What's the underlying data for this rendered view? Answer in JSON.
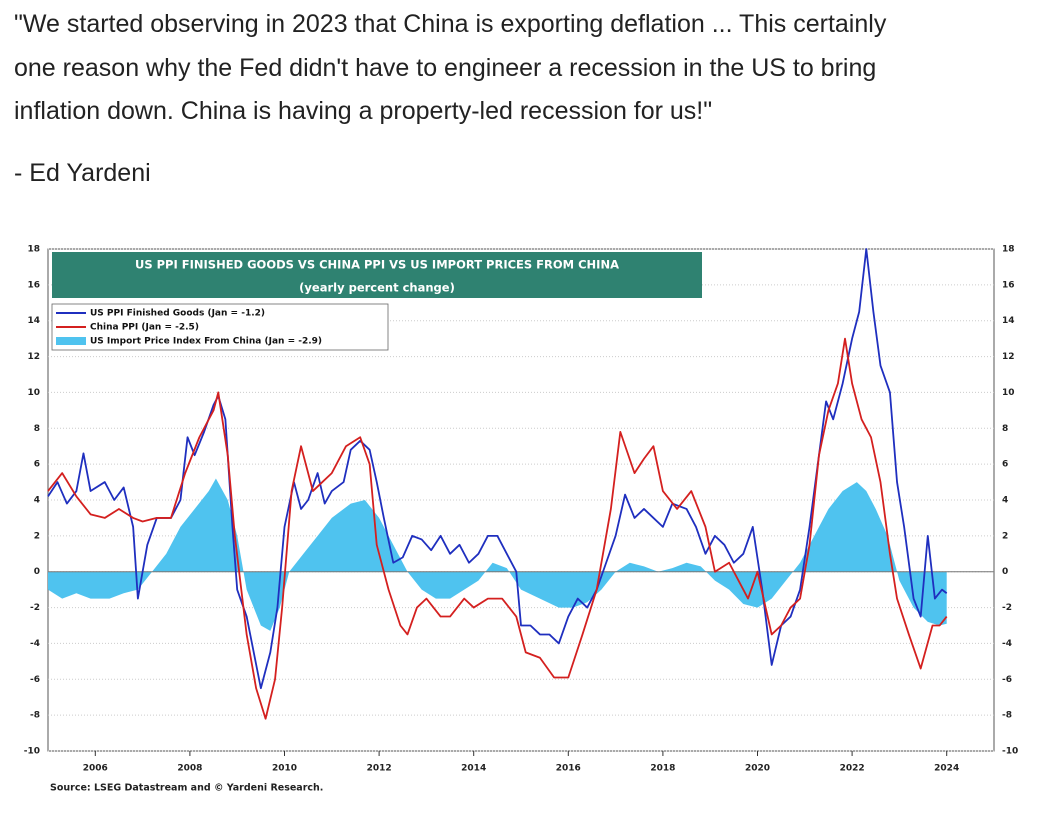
{
  "post": {
    "quote_lines": [
      "\"We started observing in 2023 that China is exporting deflation ... This certainly",
      "one reason why the Fed didn't have to engineer a recession in the US to bring",
      "inflation down. China is having a property-led recession for us!\""
    ],
    "attribution": "- Ed Yardeni"
  },
  "chart_data": {
    "type": "line",
    "title": "US PPI FINISHED GOODS VS CHINA PPI VS US IMPORT PRICES FROM CHINA",
    "subtitle": "(yearly percent change)",
    "source": "Source: LSEG Datastream and © Yardeni Research.",
    "xlim": [
      2005,
      2025
    ],
    "xticks": [
      2006,
      2008,
      2010,
      2012,
      2014,
      2016,
      2018,
      2020,
      2022,
      2024
    ],
    "ylim": [
      -10,
      18
    ],
    "yticks": [
      -10,
      -8,
      -6,
      -4,
      -2,
      0,
      2,
      4,
      6,
      8,
      10,
      12,
      14,
      16,
      18
    ],
    "grid": true,
    "series": [
      {
        "name": "US PPI Finished Goods (Jan = -1.2)",
        "color": "#1f2fbf",
        "style": "line",
        "x": [
          2005.0,
          2005.2,
          2005.4,
          2005.6,
          2005.75,
          2005.9,
          2006.2,
          2006.4,
          2006.6,
          2006.8,
          2006.9,
          2007.1,
          2007.3,
          2007.6,
          2007.8,
          2007.95,
          2008.1,
          2008.3,
          2008.5,
          2008.6,
          2008.75,
          2008.9,
          2009.0,
          2009.2,
          2009.35,
          2009.5,
          2009.7,
          2009.85,
          2010.0,
          2010.2,
          2010.35,
          2010.5,
          2010.7,
          2010.85,
          2011.0,
          2011.25,
          2011.4,
          2011.6,
          2011.8,
          2011.95,
          2012.1,
          2012.3,
          2012.5,
          2012.7,
          2012.9,
          2013.1,
          2013.3,
          2013.5,
          2013.7,
          2013.9,
          2014.1,
          2014.3,
          2014.5,
          2014.7,
          2014.9,
          2015.0,
          2015.2,
          2015.4,
          2015.6,
          2015.8,
          2016.0,
          2016.2,
          2016.4,
          2016.6,
          2016.8,
          2017.0,
          2017.2,
          2017.4,
          2017.6,
          2017.8,
          2018.0,
          2018.2,
          2018.5,
          2018.7,
          2018.9,
          2019.1,
          2019.3,
          2019.5,
          2019.7,
          2019.9,
          2020.1,
          2020.3,
          2020.5,
          2020.7,
          2020.9,
          2021.1,
          2021.3,
          2021.45,
          2021.6,
          2021.8,
          2022.0,
          2022.15,
          2022.3,
          2022.45,
          2022.6,
          2022.8,
          2022.95,
          2023.1,
          2023.3,
          2023.45,
          2023.6,
          2023.75,
          2023.9,
          2024.0
        ],
        "values": [
          4.2,
          5.0,
          3.8,
          4.5,
          6.6,
          4.5,
          5.0,
          4.0,
          4.7,
          2.5,
          -1.5,
          1.5,
          3.0,
          3.0,
          4.0,
          7.5,
          6.5,
          7.8,
          9.3,
          9.8,
          8.5,
          2.5,
          -1.0,
          -2.5,
          -4.5,
          -6.5,
          -4.5,
          -2.0,
          2.5,
          5.0,
          3.5,
          4.0,
          5.5,
          3.8,
          4.5,
          5.0,
          6.8,
          7.3,
          6.8,
          5.0,
          3.0,
          0.5,
          0.8,
          2.0,
          1.8,
          1.2,
          2.0,
          1.0,
          1.5,
          0.5,
          1.0,
          2.0,
          2.0,
          1.0,
          0.0,
          -3.0,
          -3.0,
          -3.5,
          -3.5,
          -4.0,
          -2.5,
          -1.5,
          -2.0,
          -1.0,
          0.5,
          2.0,
          4.3,
          3.0,
          3.5,
          3.0,
          2.5,
          3.8,
          3.5,
          2.5,
          1.0,
          2.0,
          1.5,
          0.5,
          1.0,
          2.5,
          -1.0,
          -5.2,
          -3.0,
          -2.5,
          -1.0,
          2.5,
          6.5,
          9.5,
          8.5,
          10.5,
          13.0,
          14.5,
          18.0,
          14.5,
          11.5,
          10.0,
          5.0,
          2.5,
          -1.5,
          -2.5,
          2.0,
          -1.5,
          -1.0,
          -1.2
        ]
      },
      {
        "name": "China PPI (Jan = -2.5)",
        "color": "#d4201f",
        "style": "line",
        "x": [
          2005.0,
          2005.3,
          2005.6,
          2005.9,
          2006.2,
          2006.5,
          2006.8,
          2007.0,
          2007.3,
          2007.6,
          2007.9,
          2008.2,
          2008.5,
          2008.6,
          2008.8,
          2008.95,
          2009.2,
          2009.4,
          2009.6,
          2009.8,
          2009.95,
          2010.15,
          2010.35,
          2010.6,
          2010.8,
          2011.0,
          2011.3,
          2011.6,
          2011.8,
          2011.95,
          2012.2,
          2012.45,
          2012.6,
          2012.8,
          2013.0,
          2013.3,
          2013.5,
          2013.8,
          2014.0,
          2014.3,
          2014.6,
          2014.9,
          2015.1,
          2015.4,
          2015.7,
          2016.0,
          2016.3,
          2016.6,
          2016.9,
          2017.1,
          2017.4,
          2017.6,
          2017.8,
          2018.0,
          2018.3,
          2018.6,
          2018.9,
          2019.1,
          2019.4,
          2019.6,
          2019.8,
          2020.0,
          2020.3,
          2020.5,
          2020.7,
          2020.9,
          2021.1,
          2021.3,
          2021.5,
          2021.7,
          2021.85,
          2022.0,
          2022.2,
          2022.4,
          2022.6,
          2022.8,
          2022.95,
          2023.2,
          2023.45,
          2023.7,
          2023.85,
          2024.0
        ],
        "values": [
          4.5,
          5.5,
          4.2,
          3.2,
          3.0,
          3.5,
          3.0,
          2.8,
          3.0,
          3.0,
          5.5,
          7.5,
          9.0,
          10.0,
          6.5,
          2.0,
          -3.5,
          -6.5,
          -8.2,
          -6.0,
          -2.0,
          4.5,
          7.0,
          4.5,
          5.0,
          5.5,
          7.0,
          7.5,
          6.0,
          1.5,
          -1.0,
          -3.0,
          -3.5,
          -2.0,
          -1.5,
          -2.5,
          -2.5,
          -1.5,
          -2.0,
          -1.5,
          -1.5,
          -2.5,
          -4.5,
          -4.8,
          -5.9,
          -5.9,
          -3.5,
          -1.0,
          3.5,
          7.8,
          5.5,
          6.3,
          7.0,
          4.5,
          3.5,
          4.5,
          2.5,
          0.0,
          0.5,
          -0.5,
          -1.5,
          0.0,
          -3.5,
          -3.0,
          -2.0,
          -1.5,
          1.5,
          6.5,
          9.0,
          10.5,
          13.0,
          10.5,
          8.5,
          7.5,
          5.0,
          1.0,
          -1.5,
          -3.5,
          -5.4,
          -3.0,
          -3.0,
          -2.5
        ]
      },
      {
        "name": "US Import Price Index From China (Jan = -2.9)",
        "color": "#4fc3ef",
        "style": "area",
        "x": [
          2005.0,
          2005.3,
          2005.6,
          2005.9,
          2006.3,
          2006.6,
          2006.9,
          2007.2,
          2007.5,
          2007.8,
          2008.1,
          2008.4,
          2008.55,
          2008.8,
          2009.0,
          2009.2,
          2009.5,
          2009.7,
          2009.9,
          2010.1,
          2010.4,
          2010.7,
          2011.0,
          2011.4,
          2011.7,
          2012.0,
          2012.3,
          2012.6,
          2012.9,
          2013.2,
          2013.5,
          2013.8,
          2014.1,
          2014.4,
          2014.7,
          2015.0,
          2015.4,
          2015.8,
          2016.1,
          2016.4,
          2016.7,
          2017.0,
          2017.3,
          2017.6,
          2017.9,
          2018.2,
          2018.5,
          2018.8,
          2019.1,
          2019.4,
          2019.7,
          2020.0,
          2020.3,
          2020.6,
          2020.9,
          2021.2,
          2021.5,
          2021.8,
          2022.1,
          2022.3,
          2022.5,
          2022.75,
          2023.0,
          2023.3,
          2023.6,
          2023.85,
          2024.0
        ],
        "values": [
          -1.0,
          -1.5,
          -1.2,
          -1.5,
          -1.5,
          -1.2,
          -1.0,
          0.0,
          1.0,
          2.5,
          3.5,
          4.5,
          5.2,
          4.0,
          2.0,
          -1.0,
          -3.0,
          -3.3,
          -2.0,
          0.0,
          1.0,
          2.0,
          3.0,
          3.8,
          4.0,
          3.0,
          1.5,
          0.0,
          -1.0,
          -1.5,
          -1.5,
          -1.0,
          -0.5,
          0.5,
          0.2,
          -1.0,
          -1.5,
          -2.0,
          -2.0,
          -1.7,
          -1.0,
          0.0,
          0.5,
          0.3,
          0.0,
          0.2,
          0.5,
          0.3,
          -0.5,
          -1.0,
          -1.8,
          -2.0,
          -1.5,
          -0.5,
          0.5,
          2.0,
          3.5,
          4.5,
          5.0,
          4.5,
          3.5,
          2.0,
          -0.5,
          -2.0,
          -2.8,
          -3.0,
          -2.9
        ]
      }
    ]
  }
}
